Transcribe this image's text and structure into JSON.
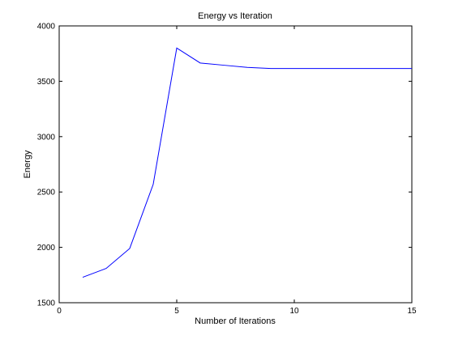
{
  "chart_data": {
    "type": "line",
    "title": "Energy vs Iteration",
    "xlabel": "Number of Iterations",
    "ylabel": "Energy",
    "xlim": [
      0,
      15
    ],
    "ylim": [
      1500,
      4000
    ],
    "xticks": [
      0,
      5,
      10,
      15
    ],
    "yticks": [
      1500,
      2000,
      2500,
      3000,
      3500,
      4000
    ],
    "grid": false,
    "series": [
      {
        "color": "#0000ff",
        "x": [
          1,
          2,
          3,
          4,
          5,
          6,
          7,
          8,
          9,
          10,
          11,
          12,
          13,
          14,
          15
        ],
        "y": [
          1730,
          1810,
          1990,
          2570,
          3800,
          3665,
          3645,
          3625,
          3615,
          3615,
          3615,
          3615,
          3615,
          3615,
          3615
        ]
      }
    ]
  }
}
